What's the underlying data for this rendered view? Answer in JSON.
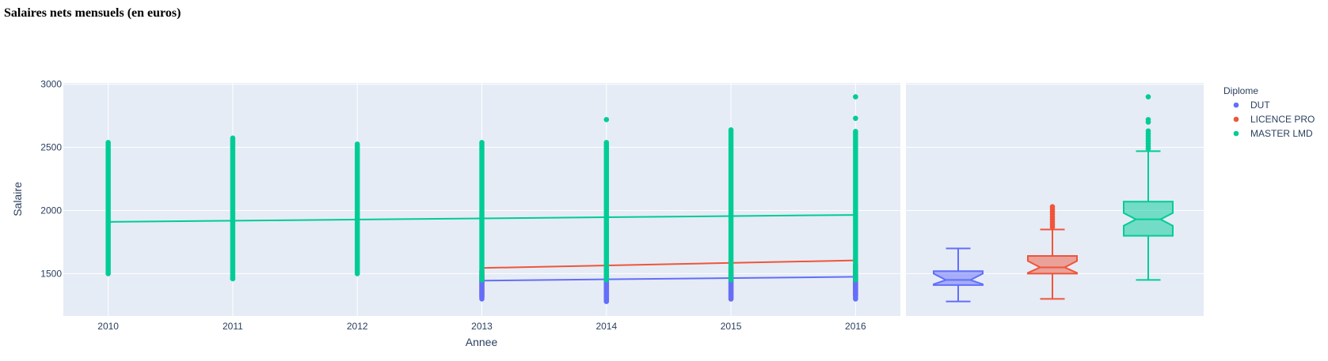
{
  "page": {
    "title": "Salaires nets mensuels (en euros)"
  },
  "chart_data": {
    "type": "scatter",
    "title": "Salaires nets mensuels (en euros)",
    "xlabel": "Annee",
    "ylabel": "Salaire",
    "xlim": [
      2009.64,
      2016.36
    ],
    "ylim": [
      1165,
      3010
    ],
    "x_ticks": [
      "2010",
      "2011",
      "2012",
      "2013",
      "2014",
      "2015",
      "2016"
    ],
    "y_ticks": [
      "1500",
      "2000",
      "2500",
      "3000"
    ],
    "grid": true,
    "legend": {
      "title": "Diplome",
      "placement": "top-right"
    },
    "series": [
      {
        "name": "DUT",
        "color": "#636efa",
        "points": {
          "2013": {
            "min": 1300,
            "max": 1490
          },
          "2014": {
            "min": 1280,
            "max": 1500
          },
          "2015": {
            "min": 1300,
            "max": 1490
          },
          "2016": {
            "min": 1300,
            "max": 1490
          }
        },
        "trendline": [
          [
            2013,
            1445
          ],
          [
            2016,
            1475
          ]
        ],
        "box": {
          "min": 1280,
          "q1": 1410,
          "median": 1450,
          "q3": 1520,
          "max": 1700,
          "outliers": []
        }
      },
      {
        "name": "LICENCE PRO",
        "color": "#ef553b",
        "points": {
          "2013": {
            "min": 1320,
            "max": 1530
          },
          "2014": {
            "min": 1300,
            "max": 1550
          },
          "2015": {
            "min": 1300,
            "max": 1560
          },
          "2016": {
            "min": 1330,
            "max": 1570
          }
        },
        "trendline": [
          [
            2013,
            1545
          ],
          [
            2016,
            1605
          ]
        ],
        "box": {
          "min": 1300,
          "q1": 1500,
          "median": 1550,
          "q3": 1640,
          "max": 1850,
          "outliers": [
            1870,
            1890,
            1910,
            1930,
            1950,
            1970,
            1990,
            2010,
            2030
          ]
        }
      },
      {
        "name": "MASTER LMD",
        "color": "#00cc96",
        "points": {
          "2010": {
            "min": 1500,
            "max": 2550,
            "outliers": []
          },
          "2011": {
            "min": 1460,
            "max": 2580,
            "outliers": [
              1460
            ]
          },
          "2012": {
            "min": 1500,
            "max": 2530,
            "outliers": []
          },
          "2013": {
            "min": 1450,
            "max": 2540,
            "outliers": []
          },
          "2014": {
            "min": 1450,
            "max": 2550,
            "outliers": [
              2720
            ]
          },
          "2015": {
            "min": 1450,
            "max": 2640,
            "outliers": []
          },
          "2016": {
            "min": 1450,
            "max": 2630,
            "outliers": [
              2730,
              2900
            ]
          }
        },
        "trendline": [
          [
            2010,
            1910
          ],
          [
            2016,
            1965
          ]
        ],
        "box": {
          "min": 1450,
          "q1": 1800,
          "median": 1930,
          "q3": 2070,
          "max": 2470,
          "outliers": [
            2490,
            2510,
            2530,
            2550,
            2570,
            2590,
            2610,
            2630,
            2700,
            2720,
            2900
          ]
        }
      }
    ]
  }
}
